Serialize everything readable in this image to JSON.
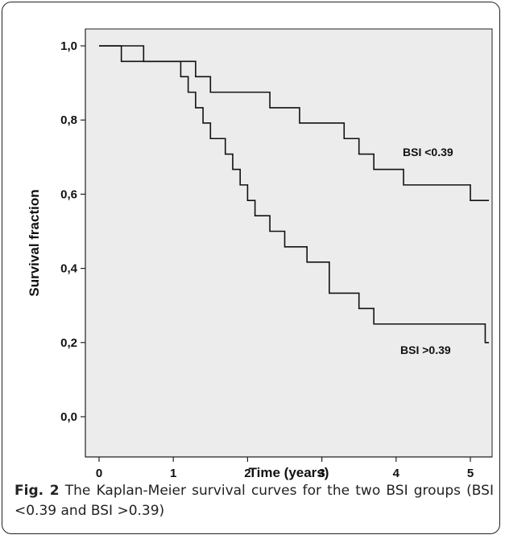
{
  "chart_data": {
    "type": "line",
    "step": true,
    "xlabel": "Time (years)",
    "ylabel": "Survival fraction",
    "xlim": [
      0,
      5.25
    ],
    "ylim": [
      0,
      1.05
    ],
    "xticks": [
      0,
      1,
      2,
      3,
      4,
      5
    ],
    "xtick_labels": [
      "0",
      "1",
      "2",
      "3",
      "4",
      "5"
    ],
    "yticks": [
      0,
      0.2,
      0.4,
      0.6,
      0.8,
      1.0
    ],
    "ytick_labels": [
      "0,0",
      "0,2",
      "0,4",
      "0,6",
      "0,8",
      "1,0"
    ],
    "plot_background": "#ececec",
    "grid": false,
    "series": [
      {
        "name": "BSI <0.39",
        "color": "#111111",
        "x": [
          0,
          0.6,
          1.3,
          1.5,
          2.3,
          2.7,
          3.3,
          3.5,
          3.7,
          4.1,
          5.0,
          5.25
        ],
        "y": [
          1.0,
          0.958,
          0.917,
          0.875,
          0.833,
          0.792,
          0.75,
          0.708,
          0.667,
          0.625,
          0.583,
          0.583
        ]
      },
      {
        "name": "BSI >0.39",
        "color": "#111111",
        "x": [
          0,
          0.3,
          1.1,
          1.2,
          1.3,
          1.4,
          1.5,
          1.7,
          1.8,
          1.9,
          2.0,
          2.1,
          2.3,
          2.5,
          2.8,
          3.1,
          3.5,
          3.7,
          5.2,
          5.25
        ],
        "y": [
          1.0,
          0.958,
          0.917,
          0.875,
          0.833,
          0.792,
          0.75,
          0.708,
          0.667,
          0.625,
          0.583,
          0.542,
          0.5,
          0.458,
          0.417,
          0.333,
          0.292,
          0.25,
          0.2,
          0.2
        ]
      }
    ]
  },
  "caption": {
    "fig_label": "Fig. 2",
    "text": " The Kaplan-Meier survival curves for the two BSI groups (BSI <0.39 and BSI >0.39)"
  }
}
